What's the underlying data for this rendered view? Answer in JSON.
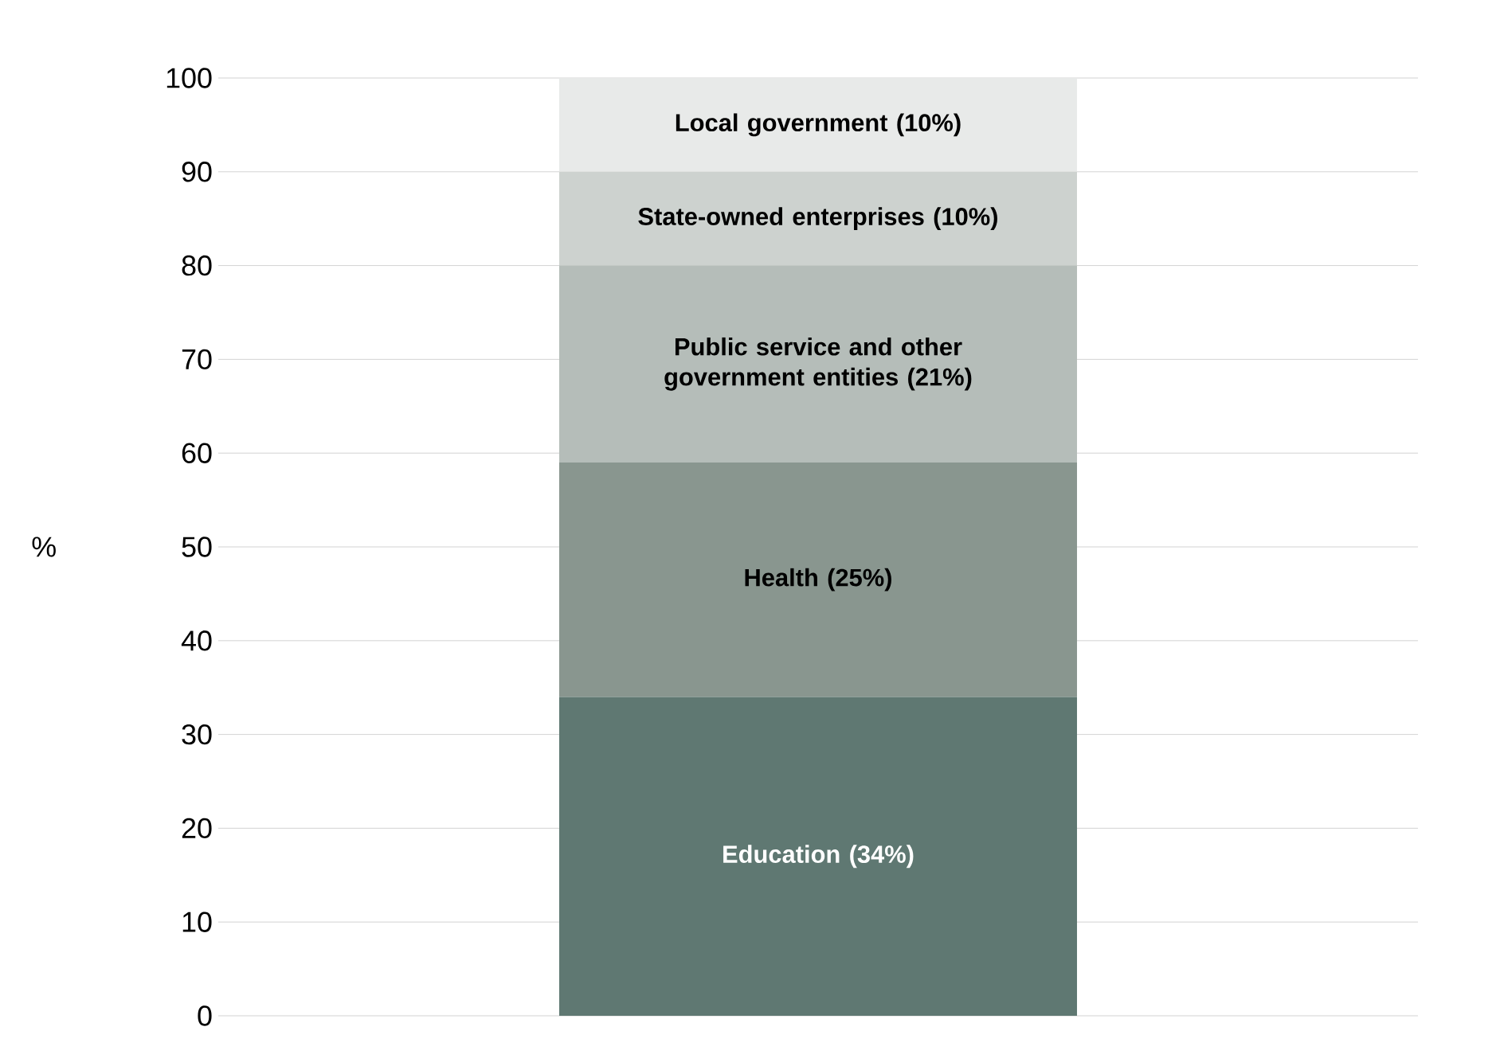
{
  "chart_data": {
    "type": "bar",
    "stacked": true,
    "categories": [
      null
    ],
    "ylabel": "%",
    "ylim": [
      0,
      100
    ],
    "yticks": [
      0,
      10,
      20,
      30,
      40,
      50,
      60,
      70,
      80,
      90,
      100
    ],
    "grid": "y",
    "legend": false,
    "series": [
      {
        "name": "Education (34%)",
        "color": "#5f7872",
        "values": [
          34
        ]
      },
      {
        "name": "Health (25%)",
        "color": "#89968f",
        "values": [
          25
        ]
      },
      {
        "name": "Public service and other government entities (21%)",
        "color": "#b5bdb9",
        "values": [
          21
        ]
      },
      {
        "name": "State-owned enterprises (10%)",
        "color": "#cdd2cf",
        "values": [
          10
        ]
      },
      {
        "name": "Local government (10%)",
        "color": "#e8eae9",
        "values": [
          10
        ]
      }
    ]
  }
}
